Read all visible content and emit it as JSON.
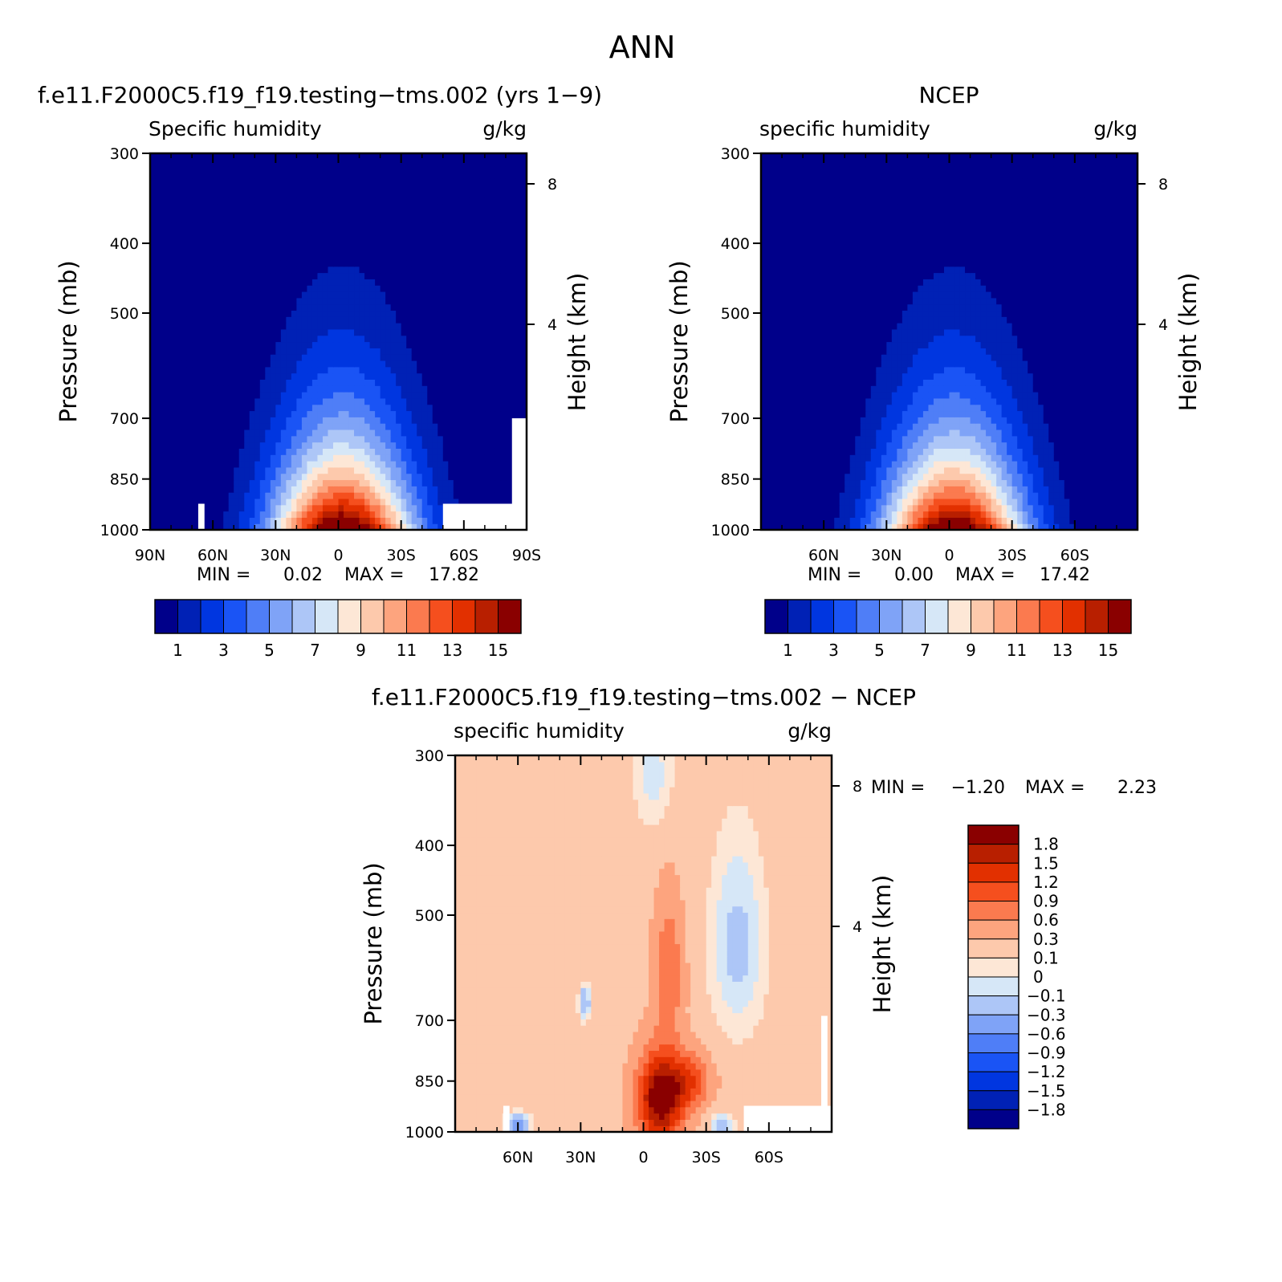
{
  "figure_title": "ANN",
  "chart_data": [
    {
      "type": "heatmap",
      "id": "model",
      "title": "f.e11.F2000C5.f19_f19.testing−tms.002 (yrs 1−9)",
      "variable_label": "Specific humidity",
      "units": "g/kg",
      "ylabel": "Pressure (mb)",
      "y2label": "Height (km)",
      "xlim": [
        90,
        -90
      ],
      "ylim": [
        1000,
        300
      ],
      "x_ticks": [
        {
          "value": 90,
          "label": "90N"
        },
        {
          "value": 60,
          "label": "60N"
        },
        {
          "value": 30,
          "label": "30N"
        },
        {
          "value": 0,
          "label": "0"
        },
        {
          "value": -30,
          "label": "30S"
        },
        {
          "value": -60,
          "label": "60S"
        },
        {
          "value": -90,
          "label": "90S"
        }
      ],
      "y_ticks": [
        {
          "value": 300,
          "label": "300"
        },
        {
          "value": 400,
          "label": "400"
        },
        {
          "value": 500,
          "label": "500"
        },
        {
          "value": 700,
          "label": "700"
        },
        {
          "value": 850,
          "label": "850"
        },
        {
          "value": 1000,
          "label": "1000"
        }
      ],
      "height_ticks": [
        {
          "value": 8,
          "label": "8"
        },
        {
          "value": 4,
          "label": "4"
        }
      ],
      "stats": {
        "min_label": "MIN =",
        "min": "0.02",
        "max_label": "MAX =",
        "max": "17.82"
      },
      "colorbar": {
        "orientation": "horizontal",
        "colors": [
          "#00008a",
          "#0021b5",
          "#0036e0",
          "#1a54f5",
          "#4f7ef7",
          "#7fa3f7",
          "#adc6f7",
          "#d6e7f7",
          "#fde7d6",
          "#fdc9ac",
          "#fda47e",
          "#fb7a4f",
          "#f54f1e",
          "#e23000",
          "#b81f00",
          "#8a0000"
        ],
        "labels": [
          "1",
          "3",
          "5",
          "7",
          "9",
          "11",
          "13",
          "15"
        ]
      },
      "field": {
        "peak_lat": -2,
        "surface_max": 17.82,
        "surface_min": 0.02
      }
    },
    {
      "type": "heatmap",
      "id": "obs",
      "title": "NCEP",
      "variable_label": "specific humidity",
      "units": "g/kg",
      "ylabel": "Pressure (mb)",
      "y2label": "Height (km)",
      "xlim": [
        90,
        -90
      ],
      "ylim": [
        1000,
        300
      ],
      "x_ticks": [
        {
          "value": 60,
          "label": "60N"
        },
        {
          "value": 30,
          "label": "30N"
        },
        {
          "value": 0,
          "label": "0"
        },
        {
          "value": -30,
          "label": "30S"
        },
        {
          "value": -60,
          "label": "60S"
        }
      ],
      "y_ticks": [
        {
          "value": 300,
          "label": "300"
        },
        {
          "value": 400,
          "label": "400"
        },
        {
          "value": 500,
          "label": "500"
        },
        {
          "value": 700,
          "label": "700"
        },
        {
          "value": 850,
          "label": "850"
        },
        {
          "value": 1000,
          "label": "1000"
        }
      ],
      "height_ticks": [
        {
          "value": 8,
          "label": "8"
        },
        {
          "value": 4,
          "label": "4"
        }
      ],
      "stats": {
        "min_label": "MIN =",
        "min": "0.00",
        "max_label": "MAX =",
        "max": "17.42"
      },
      "colorbar": {
        "orientation": "horizontal",
        "colors": [
          "#00008a",
          "#0021b5",
          "#0036e0",
          "#1a54f5",
          "#4f7ef7",
          "#7fa3f7",
          "#adc6f7",
          "#d6e7f7",
          "#fde7d6",
          "#fdc9ac",
          "#fda47e",
          "#fb7a4f",
          "#f54f1e",
          "#e23000",
          "#b81f00",
          "#8a0000"
        ],
        "labels": [
          "1",
          "3",
          "5",
          "7",
          "9",
          "11",
          "13",
          "15"
        ]
      },
      "field": {
        "peak_lat": -2,
        "surface_max": 17.42,
        "surface_min": 0.0
      }
    },
    {
      "type": "heatmap",
      "id": "diff",
      "title": "f.e11.F2000C5.f19_f19.testing−tms.002 − NCEP",
      "variable_label": "specific humidity",
      "units": "g/kg",
      "ylabel": "Pressure (mb)",
      "y2label": "Height (km)",
      "xlim": [
        90,
        -90
      ],
      "ylim": [
        1000,
        300
      ],
      "x_ticks": [
        {
          "value": 60,
          "label": "60N"
        },
        {
          "value": 30,
          "label": "30N"
        },
        {
          "value": 0,
          "label": "0"
        },
        {
          "value": -30,
          "label": "30S"
        },
        {
          "value": -60,
          "label": "60S"
        }
      ],
      "y_ticks": [
        {
          "value": 300,
          "label": "300"
        },
        {
          "value": 400,
          "label": "400"
        },
        {
          "value": 500,
          "label": "500"
        },
        {
          "value": 700,
          "label": "700"
        },
        {
          "value": 850,
          "label": "850"
        },
        {
          "value": 1000,
          "label": "1000"
        }
      ],
      "height_ticks": [
        {
          "value": 8,
          "label": "8"
        },
        {
          "value": 4,
          "label": "4"
        }
      ],
      "stats": {
        "min_label": "MIN =",
        "min": "−1.20",
        "max_label": "MAX =",
        "max": "2.23"
      },
      "colorbar": {
        "orientation": "vertical",
        "colors_top_to_bottom": [
          "#8a0000",
          "#b81f00",
          "#e23000",
          "#f54f1e",
          "#fb7a4f",
          "#fda47e",
          "#fdc9ac",
          "#fde7d6",
          "#d6e7f7",
          "#adc6f7",
          "#7fa3f7",
          "#4f7ef7",
          "#1a54f5",
          "#0036e0",
          "#0021b5",
          "#00008a"
        ],
        "labels": [
          "1.8",
          "1.5",
          "1.2",
          "0.9",
          "0.6",
          "0.3",
          "0.1",
          "0",
          "−0.1",
          "−0.3",
          "−0.6",
          "−0.9",
          "−1.2",
          "−1.5",
          "−1.8"
        ]
      },
      "field": {
        "peak_lat": -10,
        "surface_max": 2.23,
        "surface_min": -1.2
      }
    }
  ]
}
